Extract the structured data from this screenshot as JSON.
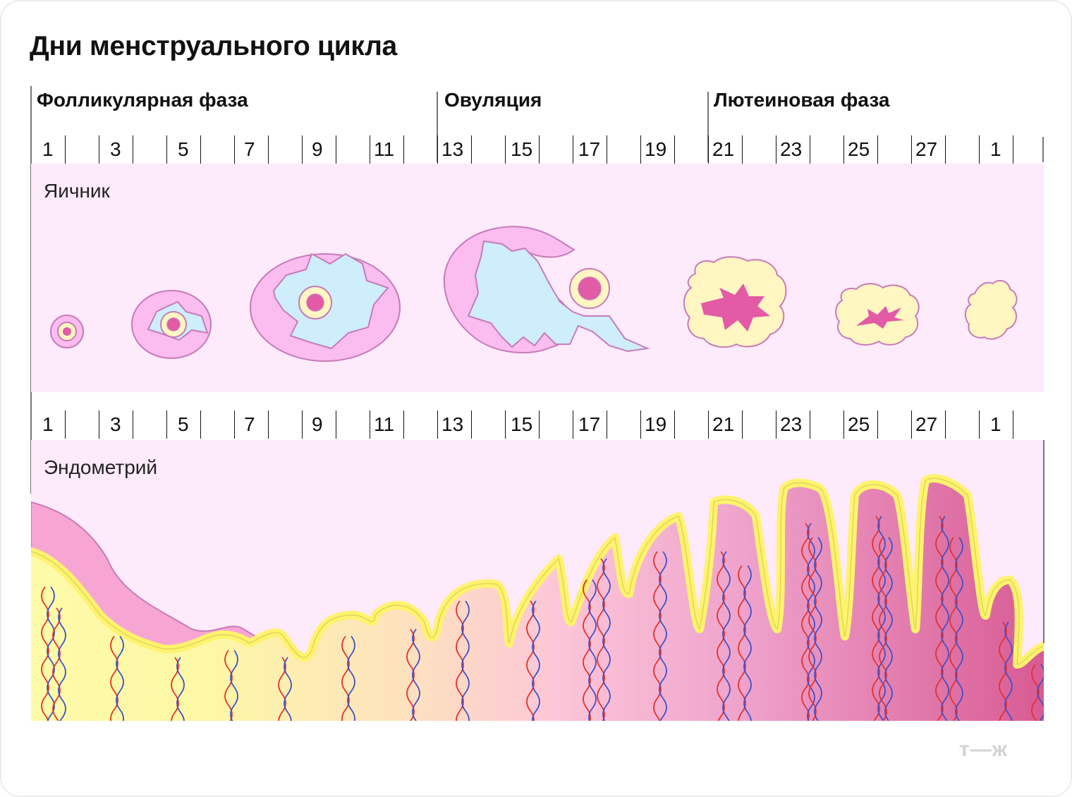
{
  "title": "Дни менструального цикла",
  "phases": [
    {
      "label": "Фолликулярная фаза"
    },
    {
      "label": "Овуляция"
    },
    {
      "label": "Лютеиновая фаза"
    }
  ],
  "days": [
    "1",
    "3",
    "5",
    "7",
    "9",
    "11",
    "13",
    "15",
    "17",
    "19",
    "21",
    "23",
    "25",
    "27",
    "1"
  ],
  "ovary_label": "Яичник",
  "endometrium_label": "Эндометрий",
  "brand": "т—ж",
  "colors": {
    "band": "#fdeafb",
    "follicle_pink": "#fbbcef",
    "follicle_outline": "#c77bb9",
    "fluid_blue": "#cdeefa",
    "egg_yellow": "#fff6c2",
    "egg_center": "#e35aa6",
    "functional_layer": "#f7a6d4",
    "yellow_lining": "#fff36e",
    "artery": "#e4332b",
    "vein": "#3f51c9"
  }
}
